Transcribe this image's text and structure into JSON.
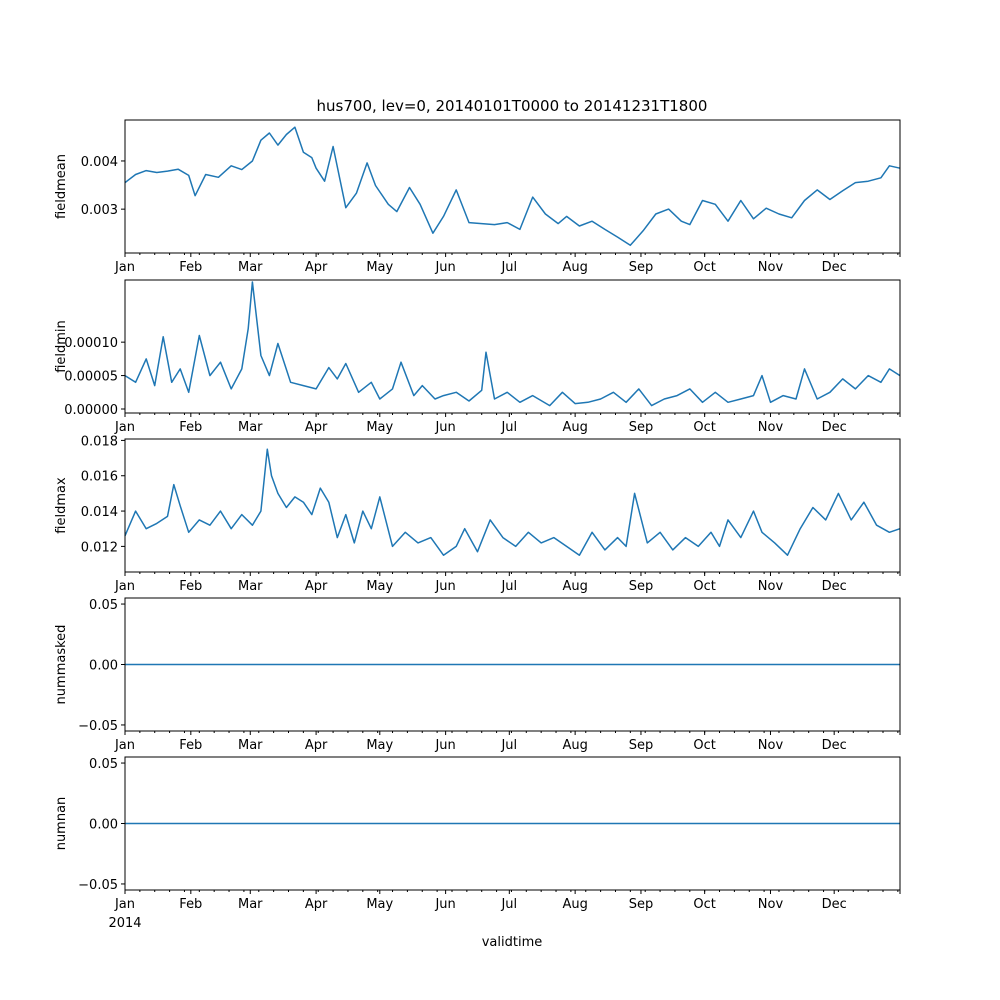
{
  "figure_title": "hus700, lev=0, 20140101T0000 to 20141231T1800",
  "xlabel": "validtime",
  "year_label": "2014",
  "colors": {
    "line": "#1f77b4"
  },
  "chart_data": [
    {
      "type": "line",
      "ylabel": "fieldmean",
      "ylim": [
        0.00209,
        0.00485
      ],
      "yticks": [
        0.003,
        0.004
      ],
      "ytick_labels": [
        "0.003",
        "0.004"
      ],
      "xlim": [
        0,
        365
      ],
      "x_tick_labels": [
        "Jan",
        "Feb",
        "Mar",
        "Apr",
        "May",
        "Jun",
        "Jul",
        "Aug",
        "Sep",
        "Oct",
        "Nov",
        "Dec"
      ],
      "x_tick_days": [
        0,
        31,
        59,
        90,
        120,
        151,
        181,
        212,
        243,
        273,
        304,
        334
      ],
      "x": [
        0,
        5,
        10,
        15,
        20,
        25,
        30,
        33,
        38,
        44,
        50,
        55,
        60,
        64,
        68,
        72,
        76,
        80,
        84,
        88,
        90,
        94,
        98,
        104,
        109,
        114,
        118,
        124,
        128,
        134,
        139,
        145,
        150,
        156,
        162,
        168,
        174,
        180,
        186,
        192,
        198,
        204,
        208,
        214,
        220,
        226,
        232,
        238,
        244,
        250,
        256,
        262,
        266,
        272,
        278,
        284,
        290,
        296,
        302,
        308,
        314,
        320,
        326,
        332,
        338,
        344,
        350,
        356,
        360,
        365
      ],
      "series": [
        {
          "name": "fieldmean",
          "values": [
            0.00355,
            0.00372,
            0.0038,
            0.00376,
            0.00379,
            0.00383,
            0.0037,
            0.00328,
            0.00372,
            0.00366,
            0.0039,
            0.00382,
            0.004,
            0.00443,
            0.00458,
            0.00433,
            0.00455,
            0.0047,
            0.00418,
            0.00407,
            0.00385,
            0.00358,
            0.0043,
            0.00303,
            0.00333,
            0.00396,
            0.00349,
            0.0031,
            0.00295,
            0.00345,
            0.0031,
            0.0025,
            0.00285,
            0.0034,
            0.00272,
            0.0027,
            0.00268,
            0.00272,
            0.00258,
            0.00325,
            0.0029,
            0.0027,
            0.00285,
            0.00265,
            0.00275,
            0.00258,
            0.00242,
            0.00225,
            0.00255,
            0.0029,
            0.003,
            0.00275,
            0.00268,
            0.00318,
            0.0031,
            0.00275,
            0.00318,
            0.0028,
            0.00302,
            0.0029,
            0.00282,
            0.00318,
            0.0034,
            0.0032,
            0.00338,
            0.00355,
            0.00358,
            0.00365,
            0.0039,
            0.00385
          ]
        }
      ]
    },
    {
      "type": "line",
      "ylabel": "fieldmin",
      "ylim": [
        -6e-06,
        0.000193
      ],
      "yticks": [
        0,
        5e-05,
        0.0001
      ],
      "ytick_labels": [
        "0.00000",
        "0.00005",
        "0.00010"
      ],
      "xlim": [
        0,
        365
      ],
      "x_tick_labels": [
        "Jan",
        "Feb",
        "Mar",
        "Apr",
        "May",
        "Jun",
        "Jul",
        "Aug",
        "Sep",
        "Oct",
        "Nov",
        "Dec"
      ],
      "x_tick_days": [
        0,
        31,
        59,
        90,
        120,
        151,
        181,
        212,
        243,
        273,
        304,
        334
      ],
      "x": [
        0,
        5,
        10,
        14,
        18,
        22,
        26,
        30,
        35,
        40,
        45,
        50,
        55,
        58,
        60,
        64,
        68,
        72,
        78,
        84,
        90,
        96,
        100,
        104,
        110,
        116,
        120,
        126,
        130,
        136,
        140,
        146,
        150,
        156,
        162,
        168,
        170,
        174,
        180,
        186,
        192,
        200,
        206,
        212,
        218,
        224,
        230,
        236,
        242,
        248,
        254,
        260,
        266,
        272,
        278,
        284,
        290,
        296,
        300,
        304,
        310,
        316,
        320,
        326,
        332,
        338,
        344,
        350,
        356,
        360,
        365
      ],
      "series": [
        {
          "name": "fieldmin",
          "values": [
            5e-05,
            4e-05,
            7.5e-05,
            3.5e-05,
            0.000108,
            4e-05,
            6e-05,
            2.5e-05,
            0.00011,
            5e-05,
            7e-05,
            3e-05,
            6e-05,
            0.00012,
            0.00019,
            8e-05,
            5e-05,
            9.8e-05,
            4e-05,
            3.5e-05,
            3e-05,
            6.2e-05,
            4.5e-05,
            6.8e-05,
            2.5e-05,
            4e-05,
            1.5e-05,
            3e-05,
            7e-05,
            2e-05,
            3.5e-05,
            1.5e-05,
            2e-05,
            2.5e-05,
            1.2e-05,
            2.8e-05,
            8.5e-05,
            1.5e-05,
            2.5e-05,
            1e-05,
            2e-05,
            5e-06,
            2.5e-05,
            8e-06,
            1e-05,
            1.5e-05,
            2.5e-05,
            1e-05,
            3e-05,
            5e-06,
            1.5e-05,
            2e-05,
            3e-05,
            1e-05,
            2.5e-05,
            1e-05,
            1.5e-05,
            2e-05,
            5e-05,
            1e-05,
            2e-05,
            1.5e-05,
            6e-05,
            1.5e-05,
            2.5e-05,
            4.5e-05,
            3e-05,
            5e-05,
            4e-05,
            6e-05,
            5e-05
          ]
        }
      ]
    },
    {
      "type": "line",
      "ylabel": "fieldmax",
      "ylim": [
        0.01055,
        0.01808
      ],
      "yticks": [
        0.012,
        0.014,
        0.016,
        0.018
      ],
      "ytick_labels": [
        "0.012",
        "0.014",
        "0.016",
        "0.018"
      ],
      "xlim": [
        0,
        365
      ],
      "x_tick_labels": [
        "Jan",
        "Feb",
        "Mar",
        "Apr",
        "May",
        "Jun",
        "Jul",
        "Aug",
        "Sep",
        "Oct",
        "Nov",
        "Dec"
      ],
      "x_tick_days": [
        0,
        31,
        59,
        90,
        120,
        151,
        181,
        212,
        243,
        273,
        304,
        334
      ],
      "x": [
        0,
        5,
        10,
        15,
        20,
        23,
        26,
        30,
        35,
        40,
        45,
        50,
        55,
        60,
        64,
        67,
        69,
        72,
        76,
        80,
        84,
        88,
        92,
        96,
        100,
        104,
        108,
        112,
        116,
        120,
        126,
        132,
        138,
        144,
        150,
        156,
        160,
        166,
        172,
        178,
        184,
        190,
        196,
        202,
        208,
        214,
        220,
        226,
        232,
        236,
        240,
        246,
        252,
        258,
        264,
        270,
        276,
        280,
        284,
        290,
        296,
        300,
        306,
        312,
        318,
        324,
        330,
        336,
        342,
        348,
        354,
        360,
        365
      ],
      "series": [
        {
          "name": "fieldmax",
          "values": [
            0.0126,
            0.014,
            0.013,
            0.0133,
            0.0137,
            0.0155,
            0.0143,
            0.0128,
            0.0135,
            0.0132,
            0.014,
            0.013,
            0.0138,
            0.0132,
            0.014,
            0.0175,
            0.016,
            0.015,
            0.0142,
            0.0148,
            0.0145,
            0.0138,
            0.0153,
            0.0145,
            0.0125,
            0.0138,
            0.0122,
            0.014,
            0.013,
            0.0148,
            0.012,
            0.0128,
            0.0122,
            0.0125,
            0.0115,
            0.012,
            0.013,
            0.0117,
            0.0135,
            0.0125,
            0.012,
            0.0128,
            0.0122,
            0.0125,
            0.012,
            0.0115,
            0.0128,
            0.0118,
            0.0125,
            0.012,
            0.015,
            0.0122,
            0.0128,
            0.0118,
            0.0125,
            0.012,
            0.0128,
            0.012,
            0.0135,
            0.0125,
            0.014,
            0.0128,
            0.0122,
            0.0115,
            0.013,
            0.0142,
            0.0135,
            0.015,
            0.0135,
            0.0145,
            0.0132,
            0.0128,
            0.013
          ]
        }
      ]
    },
    {
      "type": "line",
      "ylabel": "nummasked",
      "ylim": [
        -0.055,
        0.055
      ],
      "yticks": [
        -0.05,
        0,
        0.05
      ],
      "ytick_labels": [
        "−0.05",
        "0.00",
        "0.05"
      ],
      "xlim": [
        0,
        365
      ],
      "x_tick_labels": [
        "Jan",
        "Feb",
        "Mar",
        "Apr",
        "May",
        "Jun",
        "Jul",
        "Aug",
        "Sep",
        "Oct",
        "Nov",
        "Dec"
      ],
      "x_tick_days": [
        0,
        31,
        59,
        90,
        120,
        151,
        181,
        212,
        243,
        273,
        304,
        334
      ],
      "x": [
        0,
        365
      ],
      "series": [
        {
          "name": "nummasked",
          "values": [
            0,
            0
          ]
        }
      ]
    },
    {
      "type": "line",
      "ylabel": "numnan",
      "ylim": [
        -0.055,
        0.055
      ],
      "yticks": [
        -0.05,
        0,
        0.05
      ],
      "ytick_labels": [
        "−0.05",
        "0.00",
        "0.05"
      ],
      "xlim": [
        0,
        365
      ],
      "x_tick_labels": [
        "Jan",
        "Feb",
        "Mar",
        "Apr",
        "May",
        "Jun",
        "Jul",
        "Aug",
        "Sep",
        "Oct",
        "Nov",
        "Dec"
      ],
      "x_tick_days": [
        0,
        31,
        59,
        90,
        120,
        151,
        181,
        212,
        243,
        273,
        304,
        334
      ],
      "x": [
        0,
        365
      ],
      "series": [
        {
          "name": "numnan",
          "values": [
            0,
            0
          ]
        }
      ]
    }
  ]
}
